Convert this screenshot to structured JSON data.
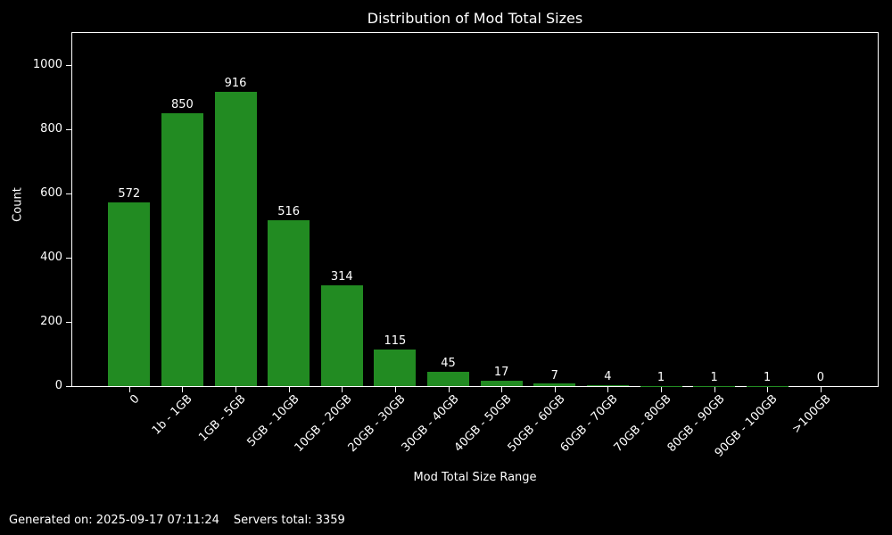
{
  "chart_data": {
    "type": "bar",
    "title": "Distribution of Mod Total Sizes",
    "xlabel": "Mod Total Size Range",
    "ylabel": "Count",
    "categories": [
      "0",
      "1b - 1GB",
      "1GB - 5GB",
      "5GB - 10GB",
      "10GB - 20GB",
      "20GB - 30GB",
      "30GB - 40GB",
      "40GB - 50GB",
      "50GB - 60GB",
      "60GB - 70GB",
      "70GB - 80GB",
      "80GB - 90GB",
      "90GB - 100GB",
      ">100GB"
    ],
    "values": [
      572,
      850,
      916,
      516,
      314,
      115,
      45,
      17,
      7,
      4,
      1,
      1,
      1,
      0
    ],
    "yticks": [
      0,
      200,
      400,
      600,
      800,
      1000
    ],
    "ylim": [
      0,
      1100
    ],
    "grid": false,
    "bar_labels": true,
    "bar_color": "#228B22",
    "background_color": "#000000",
    "text_color": "#FFFFFF"
  },
  "footer": {
    "generated": "Generated on: 2025-09-17 07:11:24",
    "servers_total": "Servers total: 3359"
  }
}
